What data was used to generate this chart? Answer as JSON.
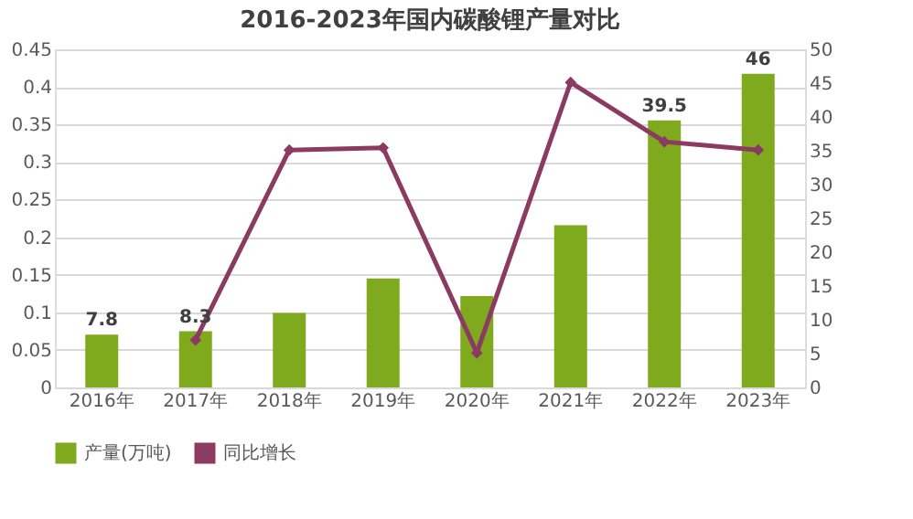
{
  "chart_data": {
    "type": "bar",
    "title": "2016-2023年国内碳酸锂产量对比",
    "categories": [
      "2016年",
      "2017年",
      "2018年",
      "2019年",
      "2020年",
      "2021年",
      "2022年",
      "2023年"
    ],
    "series": [
      {
        "name": "产量(万吨)",
        "axis": "y2",
        "color": "#7faa1e",
        "values": [
          7.8,
          8.3,
          11.0,
          16.1,
          13.5,
          24.0,
          39.5,
          46.4
        ],
        "value_labels": [
          "7.8",
          "8.3",
          null,
          null,
          null,
          null,
          "39.5",
          "46"
        ]
      },
      {
        "name": "同比增长",
        "type": "line",
        "color": "#8b3a62",
        "marker": "diamond",
        "values": [
          null,
          0.063,
          0.316,
          0.319,
          0.046,
          0.406,
          0.327,
          0.316
        ]
      }
    ],
    "ylim": [
      0,
      0.45
    ],
    "yticks": [
      0,
      0.05,
      0.1,
      0.15,
      0.2,
      0.25,
      0.3,
      0.35,
      0.4,
      0.45
    ],
    "y2lim": [
      0,
      50
    ],
    "y2ticks": [
      0,
      5,
      10,
      15,
      20,
      25,
      30,
      35,
      40,
      45,
      50
    ],
    "grid": "y",
    "legend": "bottom"
  }
}
